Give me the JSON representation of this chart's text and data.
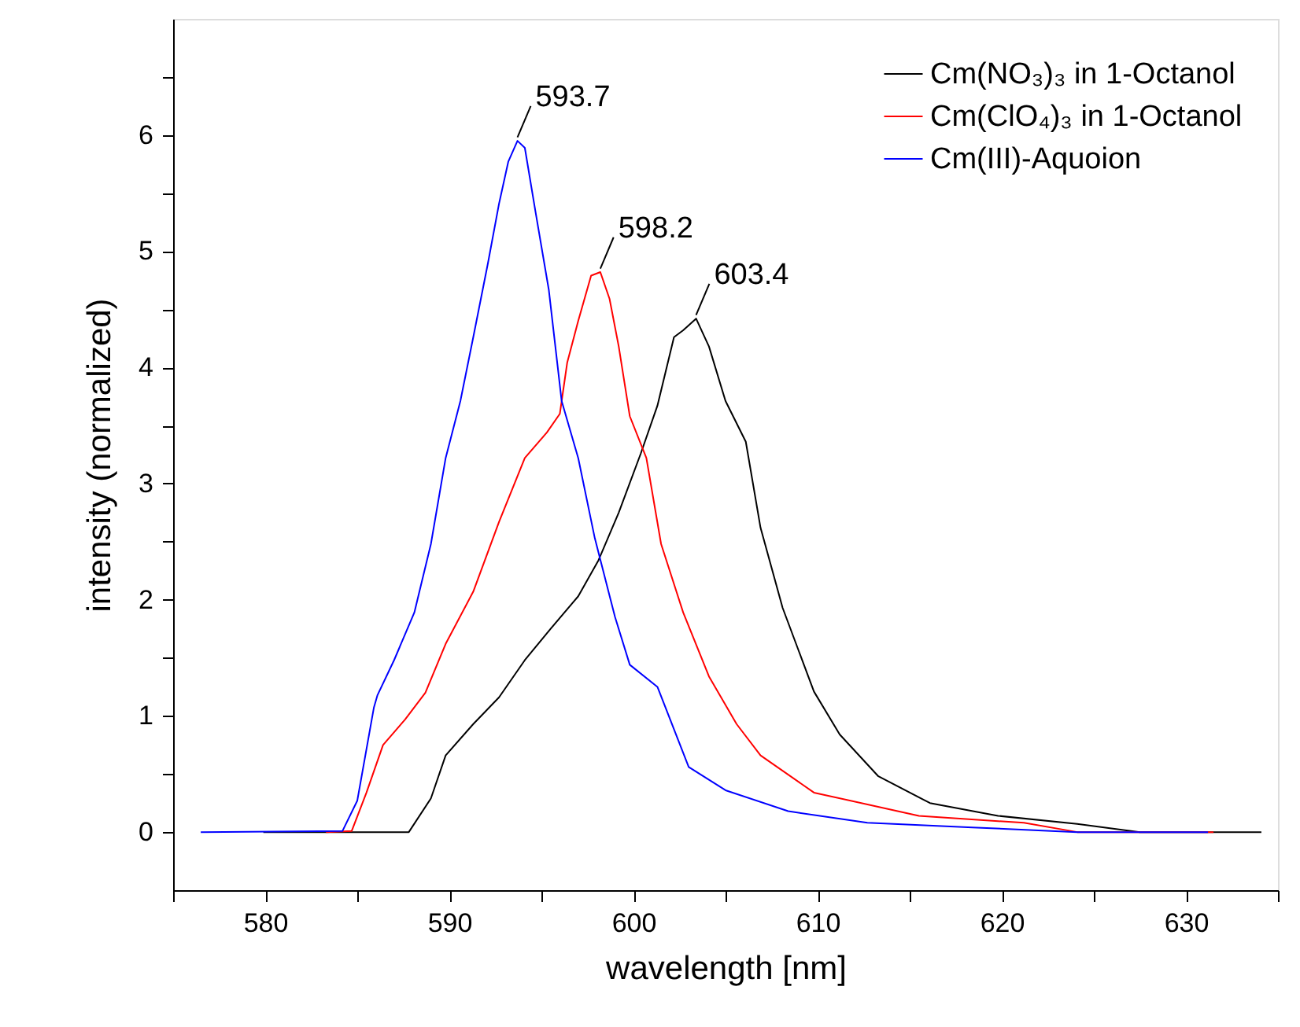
{
  "chart_data": {
    "type": "line",
    "xlabel": "wavelength [nm]",
    "ylabel": "intensity (normalized)",
    "xlim": [
      575,
      635
    ],
    "ylim": [
      -0.5,
      7
    ],
    "xticks": [
      {
        "value": 575,
        "label": null
      },
      580,
      {
        "value": 585,
        "label": null
      },
      590,
      {
        "value": 595,
        "label": null
      },
      600,
      {
        "value": 605,
        "label": null
      },
      610,
      {
        "value": 615,
        "label": null
      },
      620,
      {
        "value": 625,
        "label": null
      },
      630,
      {
        "value": 635,
        "label": null
      }
    ],
    "yticks": [
      0,
      {
        "value": 0.5,
        "label": null
      },
      1,
      {
        "value": 1.5,
        "label": null
      },
      2,
      {
        "value": 2.5,
        "label": null
      },
      3,
      {
        "value": 3.5,
        "label": null
      },
      4,
      {
        "value": 4.5,
        "label": null
      },
      5,
      {
        "value": 5.5,
        "label": null
      },
      6,
      {
        "value": 6.5,
        "label": null
      }
    ],
    "grid": false,
    "legend": "top right",
    "marker": "none",
    "line_style": "solid",
    "series": [
      {
        "name": "Cm(NO₃)₃ in 1-Octanol",
        "color": "#000000",
        "x": [
          579.9,
          587.8,
          589.0,
          589.8,
          591.3,
          592.7,
          594.1,
          595.5,
          597.0,
          598.1,
          599.2,
          600.4,
          601.3,
          602.2,
          602.7,
          603.4,
          604.1,
          605.0,
          606.1,
          606.9,
          608.1,
          609.8,
          611.2,
          613.3,
          616.1,
          619.8,
          624.1,
          627.5,
          634.1
        ],
        "values": [
          0,
          0,
          0.29,
          0.66,
          0.93,
          1.16,
          1.48,
          1.75,
          2.03,
          2.34,
          2.75,
          3.26,
          3.67,
          4.26,
          4.32,
          4.42,
          4.18,
          3.71,
          3.36,
          2.62,
          1.93,
          1.21,
          0.84,
          0.48,
          0.25,
          0.14,
          0.07,
          0,
          0
        ]
      },
      {
        "name": "Cm(ClO₄)₃ in 1-Octanol",
        "color": "#ff0000",
        "x": [
          583.3,
          584.7,
          585.5,
          586.4,
          587.6,
          588.7,
          589.8,
          591.3,
          592.7,
          594.1,
          595.3,
          596.0,
          596.4,
          597.0,
          597.7,
          598.2,
          598.7,
          599.2,
          599.8,
          600.7,
          601.5,
          602.7,
          604.1,
          605.6,
          606.9,
          609.8,
          615.5,
          621.2,
          624.1,
          631.5
        ],
        "values": [
          0,
          0.01,
          0.34,
          0.75,
          0.97,
          1.2,
          1.62,
          2.07,
          2.67,
          3.22,
          3.44,
          3.6,
          4.04,
          4.4,
          4.79,
          4.82,
          4.59,
          4.18,
          3.58,
          3.22,
          2.48,
          1.89,
          1.34,
          0.93,
          0.66,
          0.34,
          0.14,
          0.08,
          0,
          0
        ]
      },
      {
        "name": "Cm(III)-Aquoion",
        "color": "#0000ff",
        "x": [
          576.5,
          584.2,
          585.0,
          585.9,
          586.1,
          587.0,
          588.1,
          589.0,
          589.8,
          590.6,
          591.3,
          592.1,
          592.7,
          593.2,
          593.7,
          594.1,
          594.7,
          595.4,
          596.1,
          597.0,
          597.9,
          599.0,
          599.8,
          601.3,
          603.0,
          605.0,
          608.4,
          612.7,
          618.4,
          624.1,
          631.2
        ],
        "values": [
          0,
          0.01,
          0.27,
          1.07,
          1.18,
          1.48,
          1.89,
          2.48,
          3.22,
          3.71,
          4.26,
          4.9,
          5.41,
          5.77,
          5.95,
          5.89,
          5.32,
          4.67,
          3.71,
          3.22,
          2.53,
          1.85,
          1.44,
          1.25,
          0.56,
          0.36,
          0.18,
          0.08,
          0.04,
          0,
          0
        ]
      }
    ],
    "annotations": [
      {
        "text": "593.7",
        "x": 593.7,
        "y": 5.95
      },
      {
        "text": "598.2",
        "x": 598.2,
        "y": 4.82
      },
      {
        "text": "603.4",
        "x": 603.4,
        "y": 4.42
      }
    ]
  }
}
